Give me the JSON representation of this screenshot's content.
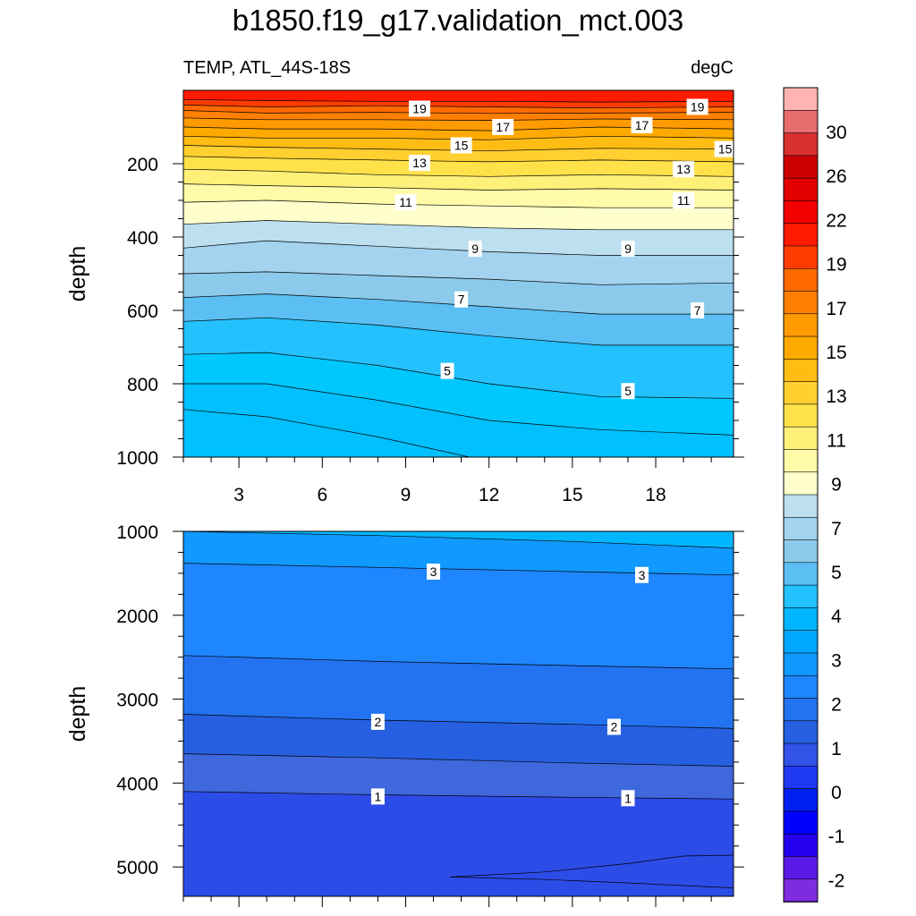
{
  "title": "b1850.f19_g17.validation_mct.003",
  "panel_label": "TEMP, ATL_44S-18S",
  "units_label": "degC",
  "chart_data": [
    {
      "type": "contour",
      "name": "upper",
      "ylabel": "depth",
      "xlabel": "",
      "xlim": [
        1.0,
        20.8
      ],
      "ylim": [
        1000,
        0
      ],
      "xticks": [
        3,
        6,
        9,
        12,
        15,
        18
      ],
      "yticks": [
        200,
        400,
        600,
        800,
        1000
      ],
      "show_x_tick_labels": true,
      "contours": [
        {
          "level": 19,
          "points": [
            [
              1,
              25
            ],
            [
              4,
              28
            ],
            [
              8,
              30
            ],
            [
              12,
              30
            ],
            [
              16,
              32
            ],
            [
              20.8,
              30
            ]
          ]
        },
        {
          "level": 19.5,
          "points": [
            [
              1,
              40
            ],
            [
              4,
              45
            ],
            [
              8,
              42
            ],
            [
              12,
              45
            ],
            [
              16,
              48
            ],
            [
              20.8,
              45
            ]
          ]
        },
        {
          "level": 19,
          "points": [
            [
              1,
              55
            ],
            [
              4,
              62
            ],
            [
              8,
              60
            ],
            [
              12,
              63
            ],
            [
              16,
              62
            ],
            [
              20.8,
              60
            ]
          ]
        },
        {
          "level": 18,
          "points": [
            [
              1,
              75
            ],
            [
              4,
              80
            ],
            [
              8,
              80
            ],
            [
              12,
              82
            ],
            [
              16,
              78
            ],
            [
              20.8,
              80
            ]
          ]
        },
        {
          "level": 17,
          "points": [
            [
              1,
              100
            ],
            [
              4,
              105
            ],
            [
              8,
              105
            ],
            [
              12,
              110
            ],
            [
              16,
              100
            ],
            [
              20.8,
              105
            ]
          ]
        },
        {
          "level": 16,
          "points": [
            [
              1,
              125
            ],
            [
              4,
              130
            ],
            [
              8,
              130
            ],
            [
              12,
              135
            ],
            [
              16,
              125
            ],
            [
              20.8,
              130
            ]
          ]
        },
        {
          "level": 15,
          "points": [
            [
              1,
              150
            ],
            [
              4,
              155
            ],
            [
              8,
              160
            ],
            [
              12,
              165
            ],
            [
              16,
              158
            ],
            [
              20.8,
              160
            ]
          ]
        },
        {
          "level": 14,
          "points": [
            [
              1,
              180
            ],
            [
              4,
              185
            ],
            [
              8,
              190
            ],
            [
              12,
              195
            ],
            [
              16,
              190
            ],
            [
              20.8,
              195
            ]
          ]
        },
        {
          "level": 13,
          "points": [
            [
              1,
              215
            ],
            [
              4,
              220
            ],
            [
              8,
              230
            ],
            [
              12,
              235
            ],
            [
              16,
              230
            ],
            [
              20.8,
              235
            ]
          ]
        },
        {
          "level": 12,
          "points": [
            [
              1,
              255
            ],
            [
              4,
              260
            ],
            [
              8,
              265
            ],
            [
              12,
              272
            ],
            [
              16,
              268
            ],
            [
              20.8,
              272
            ]
          ]
        },
        {
          "level": 11,
          "points": [
            [
              1,
              305
            ],
            [
              4,
              300
            ],
            [
              8,
              310
            ],
            [
              12,
              315
            ],
            [
              16,
              320
            ],
            [
              20.8,
              320
            ]
          ]
        },
        {
          "level": 10,
          "points": [
            [
              1,
              365
            ],
            [
              4,
              355
            ],
            [
              8,
              365
            ],
            [
              12,
              375
            ],
            [
              16,
              380
            ],
            [
              20.8,
              380
            ]
          ]
        },
        {
          "level": 9,
          "points": [
            [
              1,
              430
            ],
            [
              4,
              410
            ],
            [
              8,
              425
            ],
            [
              12,
              440
            ],
            [
              16,
              450
            ],
            [
              20.8,
              450
            ]
          ]
        },
        {
          "level": 8,
          "points": [
            [
              1,
              500
            ],
            [
              4,
              495
            ],
            [
              8,
              505
            ],
            [
              12,
              515
            ],
            [
              16,
              530
            ],
            [
              20.8,
              525
            ]
          ]
        },
        {
          "level": 7,
          "points": [
            [
              1,
              565
            ],
            [
              4,
              555
            ],
            [
              8,
              570
            ],
            [
              12,
              590
            ],
            [
              16,
              610
            ],
            [
              20.8,
              610
            ]
          ]
        },
        {
          "level": 6,
          "points": [
            [
              1,
              630
            ],
            [
              4,
              620
            ],
            [
              8,
              640
            ],
            [
              12,
              670
            ],
            [
              16,
              695
            ],
            [
              20.8,
              695
            ]
          ]
        },
        {
          "level": 5,
          "points": [
            [
              1,
              720
            ],
            [
              4,
              715
            ],
            [
              8,
              750
            ],
            [
              12,
              800
            ],
            [
              16,
              835
            ],
            [
              20.8,
              840
            ]
          ]
        },
        {
          "level": 4.5,
          "points": [
            [
              1,
              800
            ],
            [
              4,
              800
            ],
            [
              8,
              845
            ],
            [
              12,
              900
            ],
            [
              16,
              925
            ],
            [
              20.8,
              940
            ]
          ]
        },
        {
          "level": 4,
          "points": [
            [
              1,
              870
            ],
            [
              4,
              890
            ],
            [
              8,
              945
            ],
            [
              11.3,
              1000
            ]
          ]
        }
      ],
      "labels": [
        {
          "text": "19",
          "x": 9.5,
          "y": 50
        },
        {
          "text": "17",
          "x": 12.5,
          "y": 100
        },
        {
          "text": "15",
          "x": 11,
          "y": 150
        },
        {
          "text": "13",
          "x": 9.5,
          "y": 198
        },
        {
          "text": "11",
          "x": 9,
          "y": 305
        },
        {
          "text": "9",
          "x": 11.5,
          "y": 432
        },
        {
          "text": "7",
          "x": 11,
          "y": 570
        },
        {
          "text": "5",
          "x": 10.5,
          "y": 765
        },
        {
          "text": "19",
          "x": 19.5,
          "y": 45
        },
        {
          "text": "17",
          "x": 17.5,
          "y": 95
        },
        {
          "text": "15",
          "x": 20.5,
          "y": 160
        },
        {
          "text": "13",
          "x": 19,
          "y": 215
        },
        {
          "text": "11",
          "x": 19,
          "y": 300
        },
        {
          "text": "9",
          "x": 17,
          "y": 432
        },
        {
          "text": "7",
          "x": 19.5,
          "y": 600
        },
        {
          "text": "5",
          "x": 17,
          "y": 820
        }
      ]
    },
    {
      "type": "contour",
      "name": "lower",
      "ylabel": "depth",
      "xlabel": "",
      "xlim": [
        1.0,
        20.8
      ],
      "ylim": [
        5350,
        1000
      ],
      "xticks": [
        3,
        6,
        9,
        12,
        15,
        18
      ],
      "yticks": [
        1000,
        2000,
        3000,
        4000,
        5000
      ],
      "show_x_tick_labels": false,
      "contours": [
        {
          "level": 3.5,
          "points": [
            [
              1,
              1000
            ],
            [
              8,
              1050
            ],
            [
              15,
              1120
            ],
            [
              20.8,
              1200
            ]
          ]
        },
        {
          "level": 3,
          "points": [
            [
              1,
              1380
            ],
            [
              8,
              1430
            ],
            [
              15,
              1480
            ],
            [
              20.8,
              1520
            ]
          ]
        },
        {
          "level": 2.5,
          "points": [
            [
              1,
              2480
            ],
            [
              8,
              2550
            ],
            [
              15,
              2600
            ],
            [
              20.8,
              2640
            ]
          ]
        },
        {
          "level": 2,
          "points": [
            [
              1,
              3180
            ],
            [
              8,
              3250
            ],
            [
              15,
              3300
            ],
            [
              20.8,
              3350
            ]
          ]
        },
        {
          "level": 1.5,
          "points": [
            [
              1,
              3650
            ],
            [
              8,
              3700
            ],
            [
              15,
              3760
            ],
            [
              20.8,
              3800
            ]
          ]
        },
        {
          "level": 1,
          "points": [
            [
              1,
              4100
            ],
            [
              8,
              4140
            ],
            [
              15,
              4170
            ],
            [
              20.8,
              4190
            ]
          ]
        },
        {
          "level": 0.8,
          "points": [
            [
              10.6,
              5120
            ],
            [
              14,
              5060
            ],
            [
              17,
              4960
            ],
            [
              19,
              4870
            ],
            [
              20.8,
              4860
            ]
          ]
        },
        {
          "level": 0.8,
          "points": [
            [
              10.6,
              5120
            ],
            [
              14,
              5150
            ],
            [
              17,
              5190
            ],
            [
              20.8,
              5250
            ]
          ]
        }
      ],
      "labels": [
        {
          "text": "3",
          "x": 10,
          "y": 1480
        },
        {
          "text": "2",
          "x": 8,
          "y": 3270
        },
        {
          "text": "1",
          "x": 8,
          "y": 4160
        },
        {
          "text": "3",
          "x": 17.5,
          "y": 1520
        },
        {
          "text": "2",
          "x": 16.5,
          "y": 3330
        },
        {
          "text": "1",
          "x": 17,
          "y": 4180
        }
      ]
    }
  ],
  "colorbar": {
    "labels": [
      "30",
      "26",
      "22",
      "19",
      "17",
      "15",
      "13",
      "11",
      "9",
      "7",
      "5",
      "4",
      "3",
      "2",
      "1",
      "0",
      "-1",
      "-2"
    ],
    "colors": [
      "#FFB3B3",
      "#E86D6D",
      "#D93030",
      "#CC0000",
      "#E20000",
      "#F20000",
      "#FF1A00",
      "#FF3C00",
      "#FF6A00",
      "#FF8000",
      "#FF9A00",
      "#FFAA00",
      "#FFBD14",
      "#FFD030",
      "#FFE24A",
      "#FFF07A",
      "#FFFBA8",
      "#FFFFCC",
      "#BCE0F0",
      "#A3D3EE",
      "#8BCAEB",
      "#5BBFF3",
      "#24C1FF",
      "#00B7FF",
      "#00A9FF",
      "#1099FF",
      "#1E86FF",
      "#2373F0",
      "#2660E0",
      "#3352E8",
      "#1F3AF0",
      "#0020F0",
      "#0000FF",
      "#2400EE",
      "#5A1AE8",
      "#7F2BE0"
    ]
  }
}
